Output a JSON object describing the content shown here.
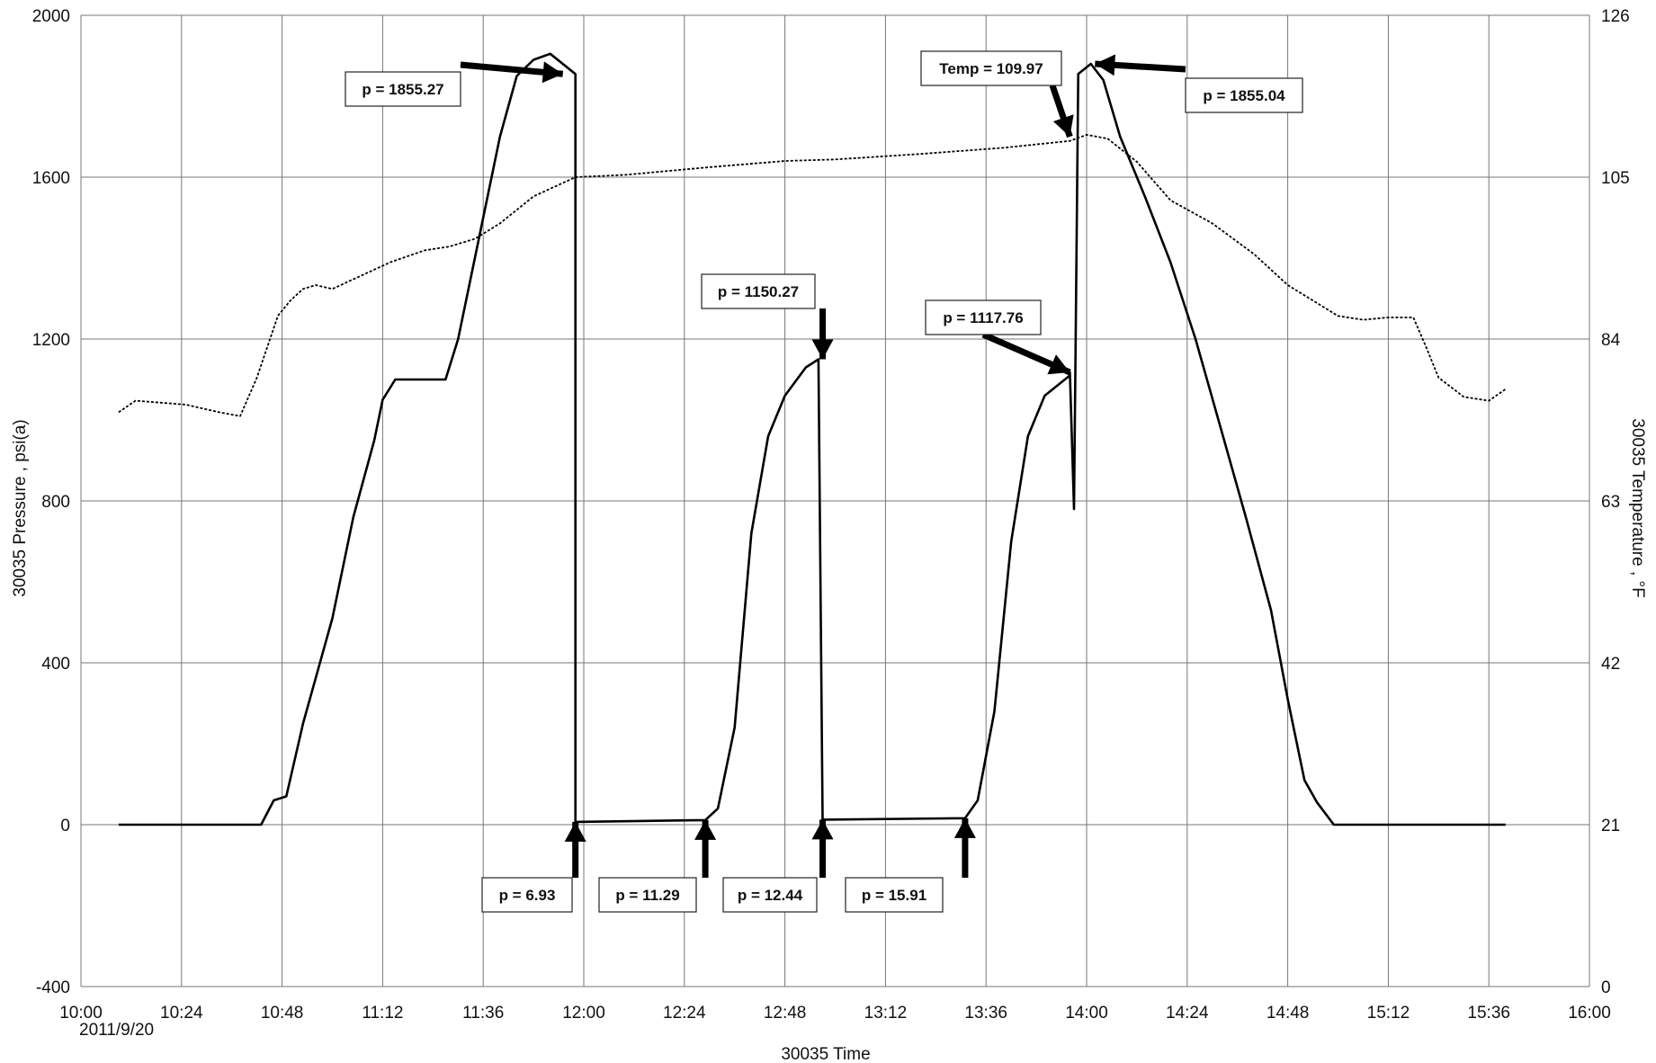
{
  "chart_data": {
    "type": "line",
    "title": "",
    "xlabel": "30035 Time",
    "ylabel": "30035 Pressure , psi(a)",
    "y2label": "30035 Temperature , °F",
    "x_date_label": "2011/9/20",
    "xlim_minutes": [
      0,
      360
    ],
    "ylim": [
      -400,
      2000
    ],
    "y2lim": [
      0,
      126
    ],
    "x_tick_labels": [
      "10:00",
      "10:24",
      "10:48",
      "11:12",
      "11:36",
      "12:00",
      "12:24",
      "12:48",
      "13:12",
      "13:36",
      "14:00",
      "14:24",
      "14:48",
      "15:12",
      "15:36",
      "16:00"
    ],
    "y_tick_labels": [
      "-400",
      "0",
      "400",
      "800",
      "1200",
      "1600",
      "2000"
    ],
    "y2_tick_labels": [
      "0",
      "21",
      "42",
      "63",
      "84",
      "105",
      "126"
    ],
    "grid": true,
    "series": [
      {
        "key": "pressure",
        "axis": "left",
        "color": "#000000",
        "x": [
          "10:09",
          "10:43",
          "10:46",
          "10:49",
          "10:53",
          "11:00",
          "11:05",
          "11:10",
          "11:12",
          "11:15",
          "11:17",
          "11:27",
          "11:30",
          "11:36",
          "11:40",
          "11:44",
          "11:48",
          "11:52",
          "11:58",
          "11:58",
          "12:29",
          "12:32",
          "12:36",
          "12:40",
          "12:44",
          "12:48",
          "12:53",
          "12:56",
          "12:57",
          "13:31",
          "13:34",
          "13:38",
          "13:42",
          "13:46",
          "13:50",
          "13:56",
          "13:56",
          "13:57",
          "13:58",
          "14:01",
          "14:04",
          "14:08",
          "14:14",
          "14:20",
          "14:26",
          "14:32",
          "14:38",
          "14:44",
          "14:48",
          "14:52",
          "14:55",
          "14:59",
          "15:20",
          "15:40"
        ],
        "y": [
          0,
          0,
          60,
          70,
          250,
          510,
          760,
          950,
          1050,
          1100,
          1100,
          1100,
          1200,
          1500,
          1700,
          1850,
          1890,
          1905,
          1855,
          7,
          11.3,
          40,
          240,
          720,
          960,
          1060,
          1130,
          1150,
          12.4,
          15.9,
          60,
          280,
          700,
          960,
          1060,
          1110,
          1117.8,
          780,
          1855,
          1880,
          1840,
          1700,
          1550,
          1390,
          1200,
          980,
          760,
          530,
          310,
          110,
          55,
          0,
          0,
          0
        ],
        "tooltip": "Pressure"
      },
      {
        "key": "temperature",
        "axis": "right",
        "color": "#000000",
        "x": [
          "10:09",
          "10:13",
          "10:25",
          "10:33",
          "10:38",
          "10:42",
          "10:47",
          "10:50",
          "10:53",
          "10:56",
          "11:00",
          "11:06",
          "11:14",
          "11:22",
          "11:28",
          "11:34",
          "11:40",
          "11:48",
          "11:58",
          "12:10",
          "12:30",
          "12:48",
          "13:00",
          "13:20",
          "13:40",
          "13:56",
          "14:00",
          "14:05",
          "14:12",
          "14:20",
          "14:30",
          "14:40",
          "14:48",
          "14:54",
          "15:00",
          "15:06",
          "15:12",
          "15:18",
          "15:21",
          "15:24",
          "15:30",
          "15:36",
          "15:40"
        ],
        "y": [
          74.5,
          76,
          75.5,
          74.5,
          74,
          79,
          87,
          89,
          90.5,
          91,
          90.5,
          92,
          94,
          95.5,
          96,
          97,
          99,
          102.5,
          105,
          105.3,
          106.3,
          107.1,
          107.3,
          108,
          108.8,
          109.7,
          110.5,
          110,
          107,
          102,
          99,
          95,
          91,
          89,
          87,
          86.5,
          86.8,
          86.8,
          83,
          79,
          76.5,
          76,
          77.5
        ],
        "tooltip": "Temperature"
      }
    ],
    "annotations": [
      {
        "text": "p = 1855.27"
      },
      {
        "text": "Temp = 109.97"
      },
      {
        "text": "p = 1855.04"
      },
      {
        "text": "p = 1150.27"
      },
      {
        "text": "p = 1117.76"
      },
      {
        "text": "p = 6.93"
      },
      {
        "text": "p = 11.29"
      },
      {
        "text": "p = 12.44"
      },
      {
        "text": "p = 15.91"
      }
    ]
  }
}
